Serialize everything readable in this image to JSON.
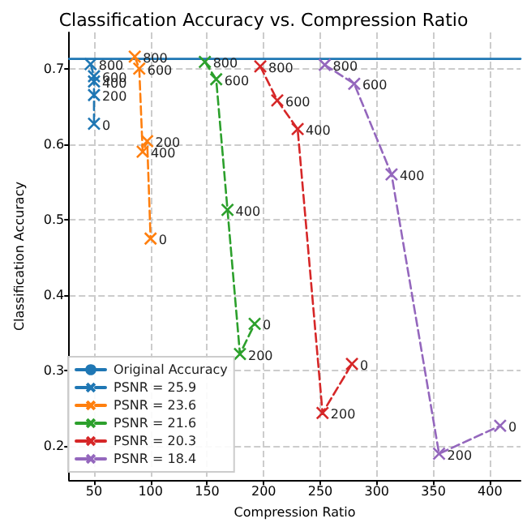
{
  "chart_data": {
    "type": "line",
    "title": "Classification Accuracy vs. Compression Ratio",
    "xlabel": "Compression Ratio",
    "ylabel": "Classification Accuracy",
    "xlim": [
      28,
      427
    ],
    "xticks": [
      50,
      100,
      150,
      200,
      250,
      300,
      350,
      400
    ],
    "ylim": [
      0.155,
      0.748
    ],
    "yticks": [
      0.2,
      0.3,
      0.4,
      0.5,
      0.6,
      0.7
    ],
    "grid": true,
    "legend": "bottom left",
    "series": [
      {
        "name": "Original Accuracy",
        "color": "#1f77b4",
        "x": [
          28,
          427
        ],
        "values": [
          0.713,
          0.713
        ],
        "line_style": "solid",
        "marker": "none"
      },
      {
        "name": "PSNR = 25.9",
        "color": "#1f77b4",
        "x": [
          47,
          50,
          50,
          50,
          50
        ],
        "values": [
          0.706,
          0.69,
          0.683,
          0.665,
          0.627
        ],
        "line_style": "dashed",
        "marker": "cross"
      },
      {
        "name": "PSNR = 23.6",
        "color": "#ff7f0e",
        "x": [
          86,
          90,
          93,
          97,
          100
        ],
        "values": [
          0.716,
          0.7,
          0.59,
          0.604,
          0.475
        ],
        "line_style": "dashed",
        "marker": "cross"
      },
      {
        "name": "PSNR = 21.6",
        "color": "#2ca02c",
        "x": [
          148,
          158,
          168,
          179,
          192
        ],
        "values": [
          0.709,
          0.686,
          0.513,
          0.322,
          0.362
        ],
        "line_style": "dashed",
        "marker": "cross"
      },
      {
        "name": "PSNR = 20.3",
        "color": "#d62728",
        "x": [
          197,
          212,
          230,
          252,
          278
        ],
        "values": [
          0.703,
          0.658,
          0.62,
          0.244,
          0.309
        ],
        "line_style": "dashed",
        "marker": "cross"
      },
      {
        "name": "PSNR = 18.4",
        "color": "#9467bd",
        "x": [
          254,
          280,
          313,
          355,
          409
        ],
        "values": [
          0.705,
          0.68,
          0.56,
          0.19,
          0.227
        ],
        "line_style": "dashed",
        "marker": "cross"
      }
    ],
    "annotations": [
      {
        "text": "800",
        "x": 47,
        "y": 0.706
      },
      {
        "text": "600",
        "x": 50,
        "y": 0.69
      },
      {
        "text": "400",
        "x": 50,
        "y": 0.683
      },
      {
        "text": "200",
        "x": 50,
        "y": 0.665
      },
      {
        "text": "0",
        "x": 50,
        "y": 0.627
      },
      {
        "text": "800",
        "x": 86,
        "y": 0.716
      },
      {
        "text": "600",
        "x": 90,
        "y": 0.7
      },
      {
        "text": "400",
        "x": 93,
        "y": 0.59
      },
      {
        "text": "200",
        "x": 97,
        "y": 0.604
      },
      {
        "text": "0",
        "x": 100,
        "y": 0.475
      },
      {
        "text": "800",
        "x": 148,
        "y": 0.709
      },
      {
        "text": "600",
        "x": 158,
        "y": 0.686
      },
      {
        "text": "400",
        "x": 168,
        "y": 0.513
      },
      {
        "text": "200",
        "x": 179,
        "y": 0.322
      },
      {
        "text": "0",
        "x": 192,
        "y": 0.362
      },
      {
        "text": "800",
        "x": 197,
        "y": 0.703
      },
      {
        "text": "600",
        "x": 212,
        "y": 0.658
      },
      {
        "text": "400",
        "x": 230,
        "y": 0.62
      },
      {
        "text": "200",
        "x": 252,
        "y": 0.244
      },
      {
        "text": "0",
        "x": 278,
        "y": 0.309
      },
      {
        "text": "800",
        "x": 254,
        "y": 0.705
      },
      {
        "text": "600",
        "x": 280,
        "y": 0.68
      },
      {
        "text": "400",
        "x": 313,
        "y": 0.56
      },
      {
        "text": "200",
        "x": 355,
        "y": 0.19
      },
      {
        "text": "0",
        "x": 409,
        "y": 0.227
      }
    ]
  }
}
